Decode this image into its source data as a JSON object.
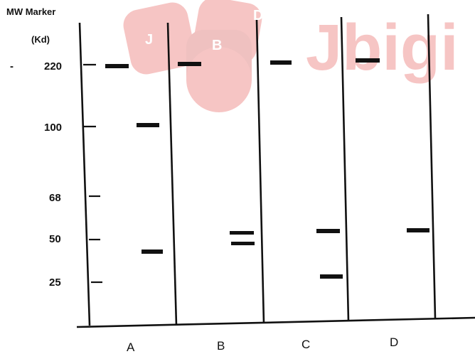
{
  "header": {
    "line1": "MW Marker",
    "line2": "(Kd)"
  },
  "marker_dash": "-",
  "mw_ticks": [
    "220",
    "100",
    "68",
    "50",
    "25"
  ],
  "lanes": [
    "A",
    "B",
    "C",
    "D"
  ],
  "watermark": {
    "text": "Jbigi",
    "dice_letters": [
      "J",
      "B",
      "D"
    ],
    "color": "#e2322f"
  },
  "colors": {
    "ink": "#111111",
    "background": "#ffffff"
  },
  "bands": {
    "A": [
      "220",
      "100",
      "below 50"
    ],
    "B": [
      "220",
      "50 (double band)"
    ],
    "C": [
      "220",
      "50",
      "25"
    ],
    "D": [
      "220",
      "50"
    ]
  }
}
